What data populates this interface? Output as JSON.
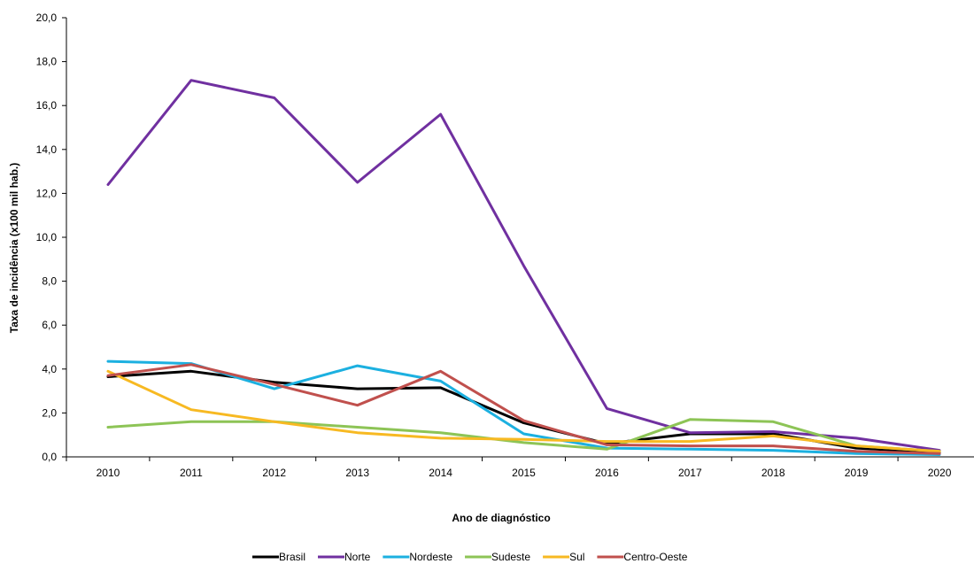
{
  "chart_data": {
    "type": "line",
    "title": "",
    "xlabel": "Ano de diagnóstico",
    "ylabel": "Taxa de incidência (x100 mil hab.)",
    "categories": [
      "2010",
      "2011",
      "2012",
      "2013",
      "2014",
      "2015",
      "2016",
      "2017",
      "2018",
      "2019",
      "2020"
    ],
    "ylim": [
      0,
      20
    ],
    "yticks": [
      "0,0",
      "2,0",
      "4,0",
      "6,0",
      "8,0",
      "10,0",
      "12,0",
      "14,0",
      "16,0",
      "18,0",
      "20,0"
    ],
    "grid": false,
    "legend_position": "bottom",
    "series": [
      {
        "name": "Brasil",
        "color": "#000000",
        "values": [
          3.65,
          3.9,
          3.4,
          3.1,
          3.15,
          1.55,
          0.6,
          1.05,
          1.05,
          0.4,
          0.2
        ]
      },
      {
        "name": "Norte",
        "color": "#7030a0",
        "values": [
          12.4,
          17.15,
          16.35,
          12.5,
          15.6,
          8.7,
          2.2,
          1.1,
          1.15,
          0.85,
          0.3
        ]
      },
      {
        "name": "Nordeste",
        "color": "#1cb0e0",
        "values": [
          4.35,
          4.25,
          3.1,
          4.15,
          3.45,
          1.05,
          0.4,
          0.35,
          0.3,
          0.15,
          0.1
        ]
      },
      {
        "name": "Sudeste",
        "color": "#8dc456",
        "values": [
          1.35,
          1.6,
          1.6,
          1.35,
          1.1,
          0.65,
          0.35,
          1.7,
          1.6,
          0.5,
          0.25
        ]
      },
      {
        "name": "Sul",
        "color": "#f7b922",
        "values": [
          3.9,
          2.15,
          1.6,
          1.1,
          0.85,
          0.8,
          0.7,
          0.7,
          0.95,
          0.5,
          0.25
        ]
      },
      {
        "name": "Centro-Oeste",
        "color": "#c0504d",
        "values": [
          3.7,
          4.2,
          3.3,
          2.35,
          3.9,
          1.65,
          0.55,
          0.5,
          0.5,
          0.25,
          0.15
        ]
      }
    ]
  }
}
